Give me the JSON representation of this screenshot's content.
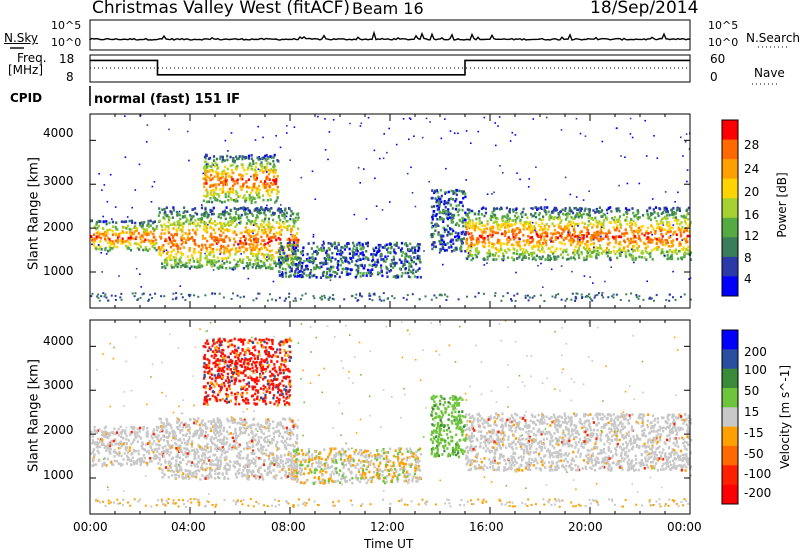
{
  "header": {
    "title": "Christmas Valley West (fitACF)",
    "beam": "Beam 16",
    "date": "18/Sep/2014"
  },
  "nsky_panel": {
    "label": "N.Sky",
    "ticks_left": [
      "10^5",
      "10^0"
    ],
    "ticks_right": [
      "10^5",
      "10^0"
    ],
    "right_label": "N.Search"
  },
  "freq_panel": {
    "label_line1": "Freq.",
    "label_line2": "[MHz]",
    "ticks_left": [
      "18",
      "8"
    ],
    "ticks_right": [
      "60",
      "0"
    ],
    "right_label": "Nave"
  },
  "cpid": {
    "label": "CPID",
    "value": "normal (fast) 151 IF"
  },
  "axes": {
    "ylabel": "Slant Range [km]",
    "xlabel": "Time UT",
    "x_ticks": [
      "00:00",
      "04:00",
      "08:00",
      "12:00",
      "16:00",
      "20:00",
      "00:00"
    ],
    "y_ticks": [
      "1000",
      "2000",
      "3000",
      "4000"
    ]
  },
  "power_colorbar": {
    "label": "Power [dB]",
    "ticks": [
      "4",
      "8",
      "12",
      "16",
      "20",
      "24",
      "28"
    ],
    "colors": [
      "#0000ff",
      "#2b3aa8",
      "#3a7d5a",
      "#55aa44",
      "#a5d030",
      "#ffd400",
      "#ffa000",
      "#ff6a00",
      "#ff0000"
    ]
  },
  "velocity_colorbar": {
    "label": "Velocity [m s^-1]",
    "ticks": [
      "200",
      "100",
      "50",
      "15",
      "-15",
      "-50",
      "-100",
      "-200"
    ],
    "colors": [
      "#0000ff",
      "#2a4ea0",
      "#3a8a3a",
      "#6ec43a",
      "#c8c8c8",
      "#ffa000",
      "#ff6a00",
      "#ff2000",
      "#ff0000"
    ]
  },
  "chart_data": [
    {
      "type": "line",
      "name": "N.Sky / N.Search noise",
      "x": [
        0,
        3,
        6,
        9,
        12,
        15,
        18,
        21,
        24
      ],
      "series": [
        {
          "values": [
            1.0,
            1.0,
            1.0,
            1.0,
            1.0,
            1.0,
            1.0,
            1.0,
            1.0
          ]
        }
      ],
      "yscale": "log",
      "ylim": [
        1,
        100000
      ]
    },
    {
      "type": "line",
      "name": "Frequency",
      "x": [
        0,
        2.7,
        2.7,
        15,
        15,
        24
      ],
      "series": [
        {
          "values": [
            17,
            17,
            11,
            11,
            17,
            17
          ]
        }
      ],
      "ylim": [
        8,
        18
      ]
    },
    {
      "type": "heatmap",
      "name": "Power",
      "xlim": [
        0,
        24
      ],
      "ylim": [
        180,
        4600
      ],
      "clim": [
        3,
        30
      ],
      "features": [
        {
          "x": [
            0,
            2.7
          ],
          "y": [
            1500,
            2200
          ],
          "value": 28
        },
        {
          "x": [
            2.7,
            8.3
          ],
          "y": [
            1100,
            2500
          ],
          "value": 26
        },
        {
          "x": [
            4.5,
            7.5
          ],
          "y": [
            2600,
            3700
          ],
          "value": 20
        },
        {
          "x": [
            7.5,
            13.2
          ],
          "y": [
            900,
            1700
          ],
          "value": 12
        },
        {
          "x": [
            13.6,
            15
          ],
          "y": [
            1500,
            2900
          ],
          "value": 10
        },
        {
          "x": [
            15,
            24
          ],
          "y": [
            1300,
            2500
          ],
          "value": 27
        }
      ]
    },
    {
      "type": "heatmap",
      "name": "Velocity",
      "xlim": [
        0,
        24
      ],
      "ylim": [
        180,
        4600
      ],
      "clim": [
        -250,
        250
      ],
      "features": [
        {
          "x": [
            0,
            2.7
          ],
          "y": [
            1300,
            2200
          ],
          "value": 0
        },
        {
          "x": [
            2.7,
            8.3
          ],
          "y": [
            1000,
            2400
          ],
          "value": 0
        },
        {
          "x": [
            4.5,
            8.0
          ],
          "y": [
            2700,
            4200
          ],
          "value": -200
        },
        {
          "x": [
            8.0,
            13.2
          ],
          "y": [
            900,
            1700
          ],
          "value": -40
        },
        {
          "x": [
            13.6,
            15
          ],
          "y": [
            1500,
            2900
          ],
          "value": 40
        },
        {
          "x": [
            15,
            24
          ],
          "y": [
            1200,
            2500
          ],
          "value": 0
        }
      ]
    }
  ]
}
